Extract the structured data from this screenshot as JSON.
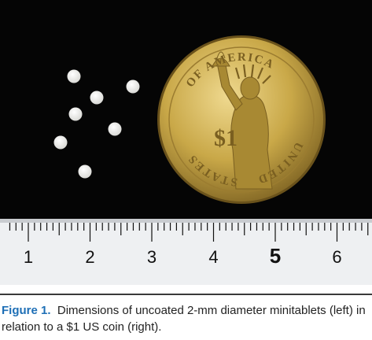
{
  "photo": {
    "coin": {
      "legend_top": "OF AMERICA",
      "legend_left": "STATES",
      "legend_bottom": "UNITED",
      "denomination": "$1",
      "colors": {
        "gold": "#c9a848",
        "gold_dark": "#8a6d25",
        "gold_light": "#e9d28a"
      }
    },
    "ruler": {
      "numbers": [
        "1",
        "2",
        "3",
        "4",
        "5",
        "6"
      ],
      "colors": {
        "face": "#eef0f2",
        "ink": "#111111"
      }
    },
    "background_color": "#000000",
    "tablet_color": "#f3f3f1"
  },
  "caption": {
    "label": "Figure 1.",
    "text": "Dimensions of uncoated 2-mm diameter minitablets (left) in relation to a $1 US coin (right)."
  }
}
